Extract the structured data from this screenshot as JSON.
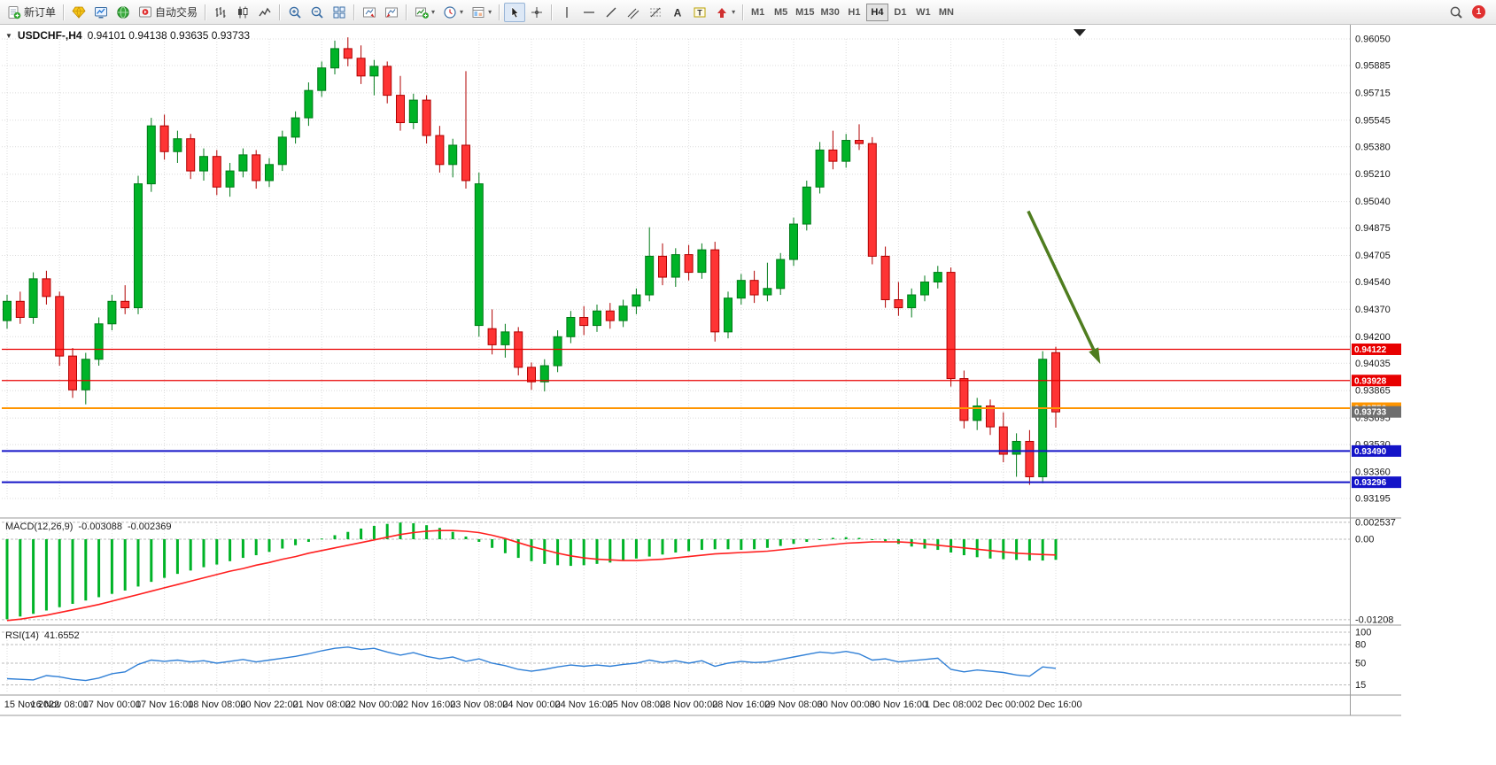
{
  "toolbar": {
    "items": [
      {
        "name": "new-order",
        "icon": "new-order",
        "label": "新订单"
      },
      {
        "sep": true
      },
      {
        "name": "metaeditor",
        "icon": "gold-gem"
      },
      {
        "name": "market-watch",
        "icon": "blue-monitor"
      },
      {
        "name": "navigator",
        "icon": "globe"
      },
      {
        "name": "autotrading",
        "icon": "autotrading",
        "label": "自动交易"
      },
      {
        "sep": true
      },
      {
        "name": "bar-chart",
        "icon": "ohlc-bars"
      },
      {
        "name": "candlestick-chart",
        "icon": "candles"
      },
      {
        "name": "line-chart",
        "icon": "polyline"
      },
      {
        "sep": true
      },
      {
        "name": "zoom-in",
        "icon": "magnifier-plus"
      },
      {
        "name": "zoom-out",
        "icon": "magnifier-minus"
      },
      {
        "name": "tile-windows",
        "icon": "tile"
      },
      {
        "sep": true
      },
      {
        "name": "auto-scroll",
        "icon": "chart-arrow-left"
      },
      {
        "name": "chart-shift",
        "icon": "chart-arrow-right"
      },
      {
        "sep": true
      },
      {
        "name": "indicators",
        "icon": "chart-plus",
        "caret": true
      },
      {
        "name": "periods",
        "icon": "clock",
        "caret": true
      },
      {
        "name": "templates",
        "icon": "template",
        "caret": true
      },
      {
        "sep": true
      },
      {
        "name": "cursor",
        "icon": "cursor",
        "active": true
      },
      {
        "name": "crosshair",
        "icon": "crosshair"
      },
      {
        "sep": true
      },
      {
        "name": "vertical-line",
        "icon": "vline"
      },
      {
        "name": "horizontal-line",
        "icon": "hline"
      },
      {
        "name": "trendline",
        "icon": "diag"
      },
      {
        "name": "equidistant-channel",
        "icon": "channel"
      },
      {
        "name": "fibonacci-retracement",
        "icon": "fibo"
      },
      {
        "name": "text",
        "icon": "letter-a"
      },
      {
        "name": "text-label",
        "icon": "letter-t"
      },
      {
        "name": "arrows",
        "icon": "arrow-shape",
        "caret": true
      },
      {
        "sep": true
      }
    ],
    "timeframes": [
      "M1",
      "M5",
      "M15",
      "M30",
      "H1",
      "H4",
      "D1",
      "W1",
      "MN"
    ],
    "active_timeframe": "H4",
    "notification_count": "1"
  },
  "chart": {
    "title": "USDCHF-,H4",
    "ohlc": "0.94101 0.94138 0.93635 0.93733"
  },
  "macd": {
    "label": "MACD(12,26,9)",
    "main_value": "-0.003088",
    "signal_value": "-0.002369"
  },
  "rsi": {
    "label": "RSI(14)",
    "value": "41.6552"
  },
  "chart_data": [
    {
      "type": "candlestick",
      "symbol": "USDCHF",
      "timeframe": "H4",
      "current_bar": {
        "open": 0.94101,
        "high": 0.94138,
        "low": 0.93635,
        "close": 0.93733
      },
      "ylim": [
        0.93195,
        0.9605
      ],
      "y_ticks": [
        "0.96050",
        "0.95885",
        "0.95715",
        "0.95545",
        "0.95380",
        "0.95210",
        "0.95040",
        "0.94875",
        "0.94705",
        "0.94540",
        "0.94370",
        "0.94200",
        "0.94035",
        "0.93865",
        "0.93695",
        "0.93530",
        "0.93360",
        "0.93195"
      ],
      "x_labels": [
        {
          "i": 0,
          "t": "15 Nov 2022"
        },
        {
          "i": 4,
          "t": "16 Nov 08:00"
        },
        {
          "i": 8,
          "t": "17 Nov 00:00"
        },
        {
          "i": 12,
          "t": "17 Nov 16:00"
        },
        {
          "i": 16,
          "t": "18 Nov 08:00"
        },
        {
          "i": 20,
          "t": "20 Nov 22:00"
        },
        {
          "i": 24,
          "t": "21 Nov 08:00"
        },
        {
          "i": 28,
          "t": "22 Nov 00:00"
        },
        {
          "i": 32,
          "t": "22 Nov 16:00"
        },
        {
          "i": 36,
          "t": "23 Nov 08:00"
        },
        {
          "i": 40,
          "t": "24 Nov 00:00"
        },
        {
          "i": 44,
          "t": "24 Nov 16:00"
        },
        {
          "i": 48,
          "t": "25 Nov 08:00"
        },
        {
          "i": 52,
          "t": "28 Nov 00:00"
        },
        {
          "i": 56,
          "t": "28 Nov 16:00"
        },
        {
          "i": 60,
          "t": "29 Nov 08:00"
        },
        {
          "i": 64,
          "t": "30 Nov 00:00"
        },
        {
          "i": 68,
          "t": "30 Nov 16:00"
        },
        {
          "i": 72,
          "t": "1 Dec 08:00"
        },
        {
          "i": 76,
          "t": "2 Dec 00:00"
        },
        {
          "i": 80,
          "t": "2 Dec 16:00"
        }
      ],
      "candles": [
        [
          0.943,
          0.9446,
          0.9425,
          0.9442
        ],
        [
          0.9442,
          0.9448,
          0.9428,
          0.9432
        ],
        [
          0.9432,
          0.946,
          0.9428,
          0.9456
        ],
        [
          0.9456,
          0.9461,
          0.944,
          0.9445
        ],
        [
          0.9445,
          0.9448,
          0.9402,
          0.9408
        ],
        [
          0.9408,
          0.9413,
          0.9382,
          0.9387
        ],
        [
          0.9387,
          0.941,
          0.9378,
          0.9406
        ],
        [
          0.9406,
          0.9432,
          0.9402,
          0.9428
        ],
        [
          0.9428,
          0.9446,
          0.9424,
          0.9442
        ],
        [
          0.9442,
          0.9452,
          0.9434,
          0.9438
        ],
        [
          0.9438,
          0.952,
          0.9434,
          0.9515
        ],
        [
          0.9515,
          0.9556,
          0.951,
          0.9551
        ],
        [
          0.9551,
          0.9558,
          0.953,
          0.9535
        ],
        [
          0.9535,
          0.9548,
          0.9528,
          0.9543
        ],
        [
          0.9543,
          0.9546,
          0.9518,
          0.9523
        ],
        [
          0.9523,
          0.9537,
          0.9517,
          0.9532
        ],
        [
          0.9532,
          0.9536,
          0.9508,
          0.9513
        ],
        [
          0.9513,
          0.9528,
          0.9507,
          0.9523
        ],
        [
          0.9523,
          0.9537,
          0.9519,
          0.9533
        ],
        [
          0.9533,
          0.9536,
          0.9512,
          0.9517
        ],
        [
          0.9517,
          0.9531,
          0.9513,
          0.9527
        ],
        [
          0.9527,
          0.9548,
          0.9523,
          0.9544
        ],
        [
          0.9544,
          0.956,
          0.954,
          0.9556
        ],
        [
          0.9556,
          0.9578,
          0.9551,
          0.9573
        ],
        [
          0.9573,
          0.9591,
          0.9569,
          0.9587
        ],
        [
          0.9587,
          0.9604,
          0.9583,
          0.9599
        ],
        [
          0.9599,
          0.9606,
          0.9588,
          0.9593
        ],
        [
          0.9593,
          0.9601,
          0.9577,
          0.9582
        ],
        [
          0.9582,
          0.9592,
          0.957,
          0.9588
        ],
        [
          0.9588,
          0.9591,
          0.9565,
          0.957
        ],
        [
          0.957,
          0.9582,
          0.9548,
          0.9553
        ],
        [
          0.9553,
          0.9571,
          0.9549,
          0.9567
        ],
        [
          0.9567,
          0.957,
          0.954,
          0.9545
        ],
        [
          0.9545,
          0.9551,
          0.9522,
          0.9527
        ],
        [
          0.9527,
          0.9543,
          0.9519,
          0.9539
        ],
        [
          0.9539,
          0.9585,
          0.9512,
          0.9517
        ],
        [
          0.9427,
          0.9522,
          0.942,
          0.9515
        ],
        [
          0.9425,
          0.9437,
          0.9409,
          0.9415
        ],
        [
          0.9415,
          0.9428,
          0.9407,
          0.9423
        ],
        [
          0.9423,
          0.9426,
          0.9396,
          0.9401
        ],
        [
          0.9401,
          0.9404,
          0.9387,
          0.9392
        ],
        [
          0.9392,
          0.9406,
          0.9386,
          0.9402
        ],
        [
          0.9402,
          0.9424,
          0.9398,
          0.942
        ],
        [
          0.942,
          0.9436,
          0.9416,
          0.9432
        ],
        [
          0.9432,
          0.9439,
          0.9421,
          0.9427
        ],
        [
          0.9427,
          0.944,
          0.9423,
          0.9436
        ],
        [
          0.9436,
          0.9441,
          0.9425,
          0.943
        ],
        [
          0.943,
          0.9443,
          0.9426,
          0.9439
        ],
        [
          0.9439,
          0.945,
          0.9434,
          0.9446
        ],
        [
          0.9446,
          0.9488,
          0.9442,
          0.947
        ],
        [
          0.947,
          0.9478,
          0.9452,
          0.9457
        ],
        [
          0.9457,
          0.9475,
          0.9451,
          0.9471
        ],
        [
          0.9471,
          0.9477,
          0.9455,
          0.946
        ],
        [
          0.946,
          0.9478,
          0.9456,
          0.9474
        ],
        [
          0.9474,
          0.9479,
          0.9417,
          0.9423
        ],
        [
          0.9423,
          0.9448,
          0.9419,
          0.9444
        ],
        [
          0.9444,
          0.9459,
          0.944,
          0.9455
        ],
        [
          0.9455,
          0.9461,
          0.9441,
          0.9446
        ],
        [
          0.9446,
          0.9466,
          0.9442,
          0.945
        ],
        [
          0.945,
          0.9472,
          0.9446,
          0.9468
        ],
        [
          0.9468,
          0.9494,
          0.9464,
          0.949
        ],
        [
          0.949,
          0.9517,
          0.9486,
          0.9513
        ],
        [
          0.9513,
          0.9541,
          0.9509,
          0.9536
        ],
        [
          0.9536,
          0.9548,
          0.9524,
          0.9529
        ],
        [
          0.9529,
          0.9546,
          0.9525,
          0.9542
        ],
        [
          0.9542,
          0.9552,
          0.9536,
          0.954
        ],
        [
          0.954,
          0.9544,
          0.9465,
          0.947
        ],
        [
          0.947,
          0.9476,
          0.9438,
          0.9443
        ],
        [
          0.9443,
          0.9454,
          0.9433,
          0.9438
        ],
        [
          0.9438,
          0.945,
          0.9432,
          0.9446
        ],
        [
          0.9446,
          0.9458,
          0.9442,
          0.9454
        ],
        [
          0.9454,
          0.9464,
          0.945,
          0.946
        ],
        [
          0.946,
          0.9463,
          0.9389,
          0.9394
        ],
        [
          0.9394,
          0.9399,
          0.9363,
          0.9368
        ],
        [
          0.9368,
          0.9382,
          0.9362,
          0.9377
        ],
        [
          0.9377,
          0.9381,
          0.9359,
          0.9364
        ],
        [
          0.9364,
          0.9373,
          0.9342,
          0.9347
        ],
        [
          0.9347,
          0.936,
          0.9333,
          0.9355
        ],
        [
          0.9355,
          0.9362,
          0.9328,
          0.9333
        ],
        [
          0.9333,
          0.9411,
          0.9329,
          0.9406
        ],
        [
          0.94101,
          0.94138,
          0.93635,
          0.93733
        ]
      ],
      "hlines": [
        {
          "value": 0.94122,
          "color": "#e80000",
          "width": 1.2,
          "tag": "0.94122",
          "tag_color": "#e80000"
        },
        {
          "value": 0.93928,
          "color": "#e80000",
          "width": 1.2,
          "tag": "0.93928",
          "tag_color": "#e80000"
        },
        {
          "value": 0.93756,
          "color": "#ff9500",
          "width": 2,
          "tag": "0.93756",
          "tag_color": "#ff9500"
        },
        {
          "value": 0.93733,
          "color": "#777777",
          "width": 0,
          "tag": "0.93733",
          "tag_color": "#6e6e6e"
        },
        {
          "value": 0.9349,
          "color": "#1414c8",
          "width": 2,
          "tag": "0.93490",
          "tag_color": "#1414c8"
        },
        {
          "value": 0.93296,
          "color": "#1414c8",
          "width": 2,
          "tag": "0.93296",
          "tag_color": "#1414c8"
        }
      ],
      "annotations": [
        {
          "type": "arrow",
          "from": {
            "bar": 77.9,
            "price": 0.9498
          },
          "to": {
            "bar": 83.0,
            "price": 0.941
          },
          "color": "#4f7d1f"
        }
      ],
      "colors": {
        "bull": "#00b327",
        "bull_border": "#007a18",
        "bear": "#fe3434",
        "bear_border": "#b00000",
        "grid": "#dcdcdc"
      }
    },
    {
      "type": "macd",
      "label": "MACD(12,26,9)",
      "main_value": -0.003088,
      "signal_value": -0.002369,
      "y_ticks": [
        {
          "v": 0.002537,
          "t": "0.002537"
        },
        {
          "v": 0,
          "t": "0.00"
        },
        {
          "v": -0.01208,
          "t": "-0.01208"
        }
      ],
      "histogram": [
        -0.012,
        -0.0116,
        -0.0112,
        -0.0107,
        -0.0102,
        -0.0097,
        -0.0092,
        -0.0087,
        -0.0082,
        -0.0077,
        -0.0071,
        -0.0064,
        -0.0058,
        -0.0052,
        -0.0047,
        -0.0042,
        -0.0038,
        -0.0033,
        -0.0028,
        -0.0024,
        -0.0019,
        -0.0014,
        -0.0009,
        -0.0004,
        0.0001,
        0.0006,
        0.0011,
        0.0016,
        0.002,
        0.0023,
        0.0025,
        0.0024,
        0.0021,
        0.0017,
        0.0011,
        0.0004,
        -0.0004,
        -0.0013,
        -0.0021,
        -0.0028,
        -0.0033,
        -0.0037,
        -0.0039,
        -0.004,
        -0.0039,
        -0.0037,
        -0.0035,
        -0.0032,
        -0.0029,
        -0.0026,
        -0.0023,
        -0.002,
        -0.0018,
        -0.0016,
        -0.0015,
        -0.0015,
        -0.0016,
        -0.0015,
        -0.0013,
        -0.001,
        -0.0007,
        -0.0004,
        -0.0001,
        0.0002,
        0.0003,
        0.0002,
        0.0,
        -0.0003,
        -0.0007,
        -0.0011,
        -0.0014,
        -0.0016,
        -0.002,
        -0.0024,
        -0.0027,
        -0.0029,
        -0.003,
        -0.0031,
        -0.0032,
        -0.0032,
        -0.003088
      ],
      "signal": [
        -0.0122,
        -0.012,
        -0.0117,
        -0.0114,
        -0.011,
        -0.0106,
        -0.0102,
        -0.0098,
        -0.0093,
        -0.0088,
        -0.0083,
        -0.0078,
        -0.0073,
        -0.0068,
        -0.0063,
        -0.0058,
        -0.0053,
        -0.0048,
        -0.0044,
        -0.0039,
        -0.0035,
        -0.003,
        -0.0026,
        -0.0021,
        -0.0017,
        -0.0013,
        -0.0009,
        -0.0005,
        -0.0001,
        0.0003,
        0.0007,
        0.001,
        0.0012,
        0.0013,
        0.0013,
        0.0012,
        0.001,
        0.0006,
        0.0001,
        -0.0005,
        -0.0011,
        -0.0016,
        -0.0021,
        -0.0025,
        -0.0028,
        -0.003,
        -0.0031,
        -0.0032,
        -0.0032,
        -0.0031,
        -0.003,
        -0.0028,
        -0.0026,
        -0.0024,
        -0.0022,
        -0.0021,
        -0.002,
        -0.0019,
        -0.0018,
        -0.0016,
        -0.0014,
        -0.0012,
        -0.001,
        -0.0008,
        -0.0006,
        -0.0005,
        -0.0004,
        -0.0004,
        -0.0004,
        -0.0005,
        -0.0007,
        -0.0009,
        -0.0011,
        -0.0013,
        -0.0015,
        -0.0017,
        -0.0019,
        -0.0021,
        -0.0022,
        -0.0023,
        -0.002369
      ],
      "colors": {
        "histogram": "#00b327",
        "signal": "#ff1f1f"
      }
    },
    {
      "type": "rsi",
      "label": "RSI(14)",
      "value": 41.6552,
      "y_ticks": [
        {
          "v": 100,
          "t": "100"
        },
        {
          "v": 80,
          "t": "80"
        },
        {
          "v": 50,
          "t": "50"
        },
        {
          "v": 15,
          "t": "15"
        }
      ],
      "levels": [
        100,
        80,
        50,
        15
      ],
      "series": [
        25,
        24,
        23,
        30,
        28,
        24,
        22,
        26,
        33,
        36,
        48,
        55,
        53,
        55,
        52,
        54,
        50,
        53,
        56,
        52,
        55,
        58,
        61,
        65,
        70,
        74,
        76,
        72,
        74,
        68,
        63,
        67,
        61,
        57,
        60,
        53,
        57,
        50,
        46,
        40,
        37,
        40,
        44,
        47,
        45,
        47,
        45,
        48,
        50,
        55,
        51,
        54,
        50,
        54,
        45,
        50,
        53,
        51,
        52,
        56,
        60,
        64,
        68,
        66,
        69,
        65,
        55,
        57,
        52,
        54,
        56,
        58,
        40,
        36,
        39,
        37,
        35,
        31,
        29,
        44,
        41.6552
      ],
      "colors": {
        "line": "#2f7fd6"
      }
    }
  ]
}
